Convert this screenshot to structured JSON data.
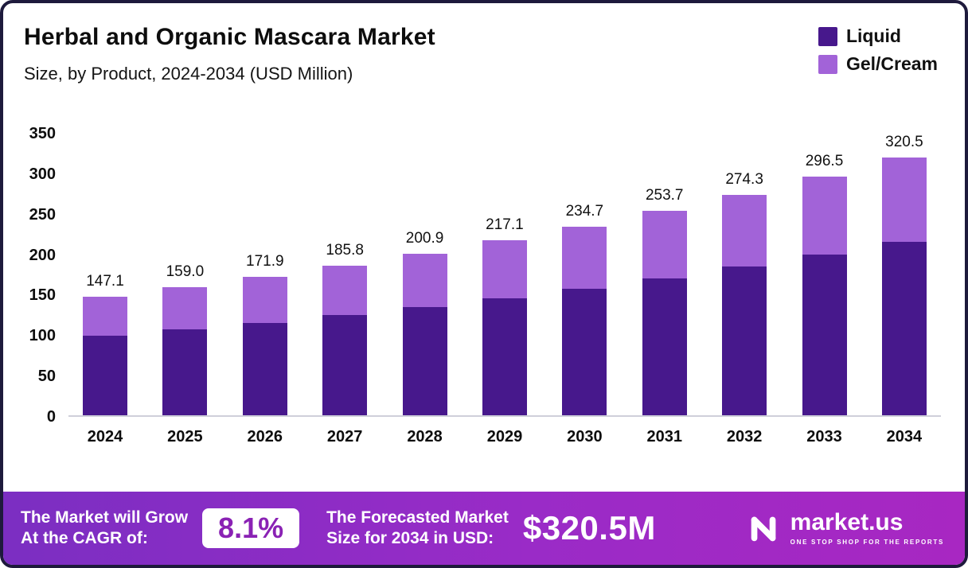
{
  "header": {
    "title": "Herbal and Organic Mascara Market",
    "subtitle": "Size, by Product, 2024-2034 (USD Million)"
  },
  "legend": [
    {
      "label": "Liquid",
      "color": "#47188c"
    },
    {
      "label": "Gel/Cream",
      "color": "#a263d8"
    }
  ],
  "chart_data": {
    "type": "bar",
    "stacked": true,
    "title": "Herbal and Organic Mascara Market Size, by Product, 2024-2034 (USD Million)",
    "categories": [
      "2024",
      "2025",
      "2026",
      "2027",
      "2028",
      "2029",
      "2030",
      "2031",
      "2032",
      "2033",
      "2034"
    ],
    "series": [
      {
        "name": "Liquid",
        "color": "#47188c",
        "values": [
          98.4,
          106.3,
          115.1,
          124.4,
          134.8,
          145.7,
          157.6,
          170.5,
          184.5,
          199.7,
          216.1
        ]
      },
      {
        "name": "Gel/Cream",
        "color": "#a263d8",
        "values": [
          48.7,
          52.7,
          56.8,
          61.4,
          66.1,
          71.4,
          77.1,
          83.2,
          89.8,
          96.8,
          104.4
        ]
      }
    ],
    "totals_labels": [
      "147.1",
      "159.0",
      "171.9",
      "185.8",
      "200.9",
      "217.1",
      "234.7",
      "253.7",
      "274.3",
      "296.5",
      "320.5"
    ],
    "xlabel": "",
    "ylabel": "",
    "ylim": [
      0,
      350
    ],
    "yticks": [
      0,
      50,
      100,
      150,
      200,
      250,
      300,
      350
    ],
    "grid": false,
    "legend_position": "top-right"
  },
  "footer": {
    "cagr_label_line1": "The Market will Grow",
    "cagr_label_line2": "At the CAGR of:",
    "cagr_value": "8.1%",
    "forecast_label_line1": "The Forecasted Market",
    "forecast_label_line2": "Size for 2034 in USD:",
    "forecast_value": "$320.5M",
    "brand": "market.us",
    "brand_tagline": "ONE STOP SHOP FOR THE REPORTS"
  },
  "colors": {
    "border": "#1e1a3c",
    "banner_gradient_start": "#7b2ec2",
    "banner_gradient_end": "#a827c2",
    "cagr_text": "#8a22b4",
    "baseline": "#cfcfda"
  }
}
